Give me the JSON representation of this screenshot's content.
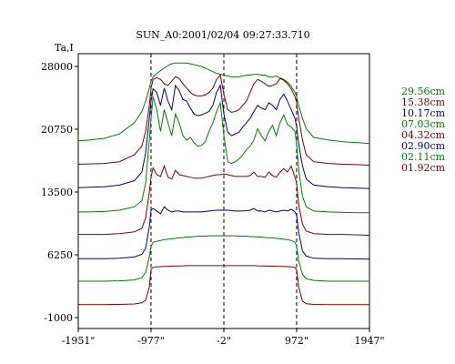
{
  "chart_data": {
    "type": "line",
    "title": "SUN_A0:2001/02/04 09:27:33.710",
    "ylabel": "Ta,I",
    "xlabel": "",
    "x_ticks": [
      "-1951\"",
      "-977\"",
      "-2\"",
      "972\"",
      "1947\""
    ],
    "x_tick_values": [
      -1951,
      -977,
      -2,
      972,
      1947
    ],
    "y_ticks": [
      "28000",
      "20750",
      "13500",
      "6250",
      "-1000"
    ],
    "y_tick_values": [
      28000,
      20750,
      13500,
      6250,
      -1000
    ],
    "xlim": [
      -1951,
      1947
    ],
    "ylim": [
      -1000,
      28000
    ],
    "dashed_vlines": [
      -977,
      -2,
      972
    ],
    "legend_position": "right",
    "grid": false,
    "x": [
      -1951,
      -1800,
      -1600,
      -1400,
      -1200,
      -1100,
      -1050,
      -1000,
      -977,
      -950,
      -900,
      -850,
      -800,
      -750,
      -700,
      -650,
      -600,
      -550,
      -500,
      -450,
      -400,
      -350,
      -300,
      -250,
      -200,
      -150,
      -100,
      -50,
      -2,
      50,
      100,
      150,
      200,
      250,
      300,
      350,
      400,
      450,
      500,
      550,
      600,
      650,
      700,
      750,
      800,
      850,
      900,
      950,
      972,
      1000,
      1050,
      1100,
      1200,
      1400,
      1600,
      1800,
      1947
    ],
    "series": [
      {
        "name": "29.56cm",
        "color": "#008000",
        "values": [
          19400,
          19500,
          19700,
          20200,
          21500,
          22800,
          24000,
          25500,
          26300,
          26800,
          27200,
          27500,
          27800,
          28100,
          28300,
          28400,
          28400,
          28400,
          28400,
          28300,
          28200,
          28100,
          28000,
          27800,
          27600,
          27400,
          27200,
          27100,
          27000,
          26900,
          26800,
          26800,
          26800,
          26900,
          27000,
          27000,
          27100,
          27100,
          27000,
          27000,
          26800,
          26800,
          26900,
          26700,
          26500,
          26200,
          25700,
          25000,
          24500,
          23500,
          22000,
          20800,
          19800,
          19500,
          19300,
          19200,
          19100
        ]
      },
      {
        "name": "15.38cm",
        "color": "#800000",
        "values": [
          16700,
          16750,
          16800,
          17000,
          17800,
          18800,
          20500,
          23500,
          25500,
          26500,
          26700,
          26500,
          26000,
          25800,
          26300,
          26800,
          26600,
          26000,
          25500,
          25000,
          24700,
          24600,
          24600,
          24700,
          25000,
          25500,
          26500,
          27000,
          24800,
          23000,
          22700,
          22800,
          23000,
          23500,
          24000,
          25000,
          26000,
          26500,
          26300,
          26000,
          25700,
          25800,
          26000,
          26600,
          26400,
          26000,
          25400,
          24500,
          23800,
          22000,
          19500,
          17800,
          17000,
          16800,
          16700,
          16650,
          16600
        ]
      },
      {
        "name": "10.17cm",
        "color": "#000080",
        "values": [
          14000,
          14050,
          14100,
          14300,
          14800,
          15800,
          18000,
          22000,
          24000,
          25400,
          25000,
          23500,
          25500,
          24000,
          23000,
          25800,
          25200,
          24200,
          24000,
          23200,
          22500,
          22300,
          22400,
          22600,
          22800,
          23500,
          25000,
          25800,
          22500,
          20400,
          20000,
          20200,
          20400,
          21000,
          21500,
          22000,
          22800,
          23500,
          23200,
          23000,
          23800,
          23500,
          23000,
          24200,
          24800,
          24000,
          23000,
          22000,
          21000,
          19000,
          16500,
          15000,
          14300,
          14100,
          14000,
          13950,
          13900
        ]
      },
      {
        "name": "07.03cm",
        "color": "#008000",
        "values": [
          11200,
          11200,
          11250,
          11400,
          11800,
          12500,
          14500,
          19500,
          22000,
          24500,
          23000,
          20500,
          23000,
          21500,
          20000,
          22500,
          21500,
          20000,
          19500,
          19800,
          19200,
          18800,
          18900,
          19300,
          20500,
          21500,
          22800,
          23800,
          20000,
          17000,
          16800,
          17000,
          17300,
          17800,
          18400,
          18800,
          19500,
          20800,
          20000,
          19400,
          20500,
          21200,
          20000,
          21500,
          22400,
          21300,
          21000,
          20500,
          19000,
          16000,
          13000,
          11800,
          11300,
          11200,
          11150,
          11100,
          11100
        ]
      },
      {
        "name": "04.32cm",
        "color": "#800000",
        "values": [
          8600,
          8600,
          8600,
          8700,
          8900,
          9300,
          10500,
          13500,
          15200,
          16300,
          15500,
          15300,
          16500,
          15200,
          15000,
          16000,
          15500,
          15400,
          15300,
          15200,
          15100,
          15100,
          15100,
          15200,
          15300,
          15400,
          15500,
          15500,
          15600,
          15500,
          15400,
          15300,
          15300,
          15300,
          15300,
          15400,
          15800,
          15300,
          15300,
          15200,
          15800,
          15400,
          15200,
          15800,
          16200,
          15800,
          16500,
          15200,
          14500,
          12000,
          9800,
          9000,
          8700,
          8600,
          8600,
          8550,
          8500
        ]
      },
      {
        "name": "02.90cm",
        "color": "#000080",
        "values": [
          5800,
          5800,
          5800,
          5850,
          6000,
          6300,
          7000,
          9500,
          11400,
          11600,
          11300,
          11000,
          11800,
          11400,
          11200,
          11300,
          11300,
          11200,
          11200,
          11200,
          11200,
          11200,
          11200,
          11250,
          11300,
          11350,
          11400,
          11400,
          11400,
          11400,
          11350,
          11300,
          11300,
          11300,
          11350,
          11400,
          11600,
          11300,
          11300,
          11200,
          11400,
          11300,
          11200,
          11300,
          11400,
          11300,
          11500,
          11200,
          10800,
          8800,
          6700,
          6100,
          5850,
          5800,
          5800,
          5780,
          5750
        ]
      },
      {
        "name": "02.11cm",
        "color": "#008000",
        "values": [
          3200,
          3200,
          3200,
          3250,
          3350,
          3600,
          4200,
          6000,
          7200,
          7700,
          7800,
          7900,
          8000,
          8050,
          8100,
          8150,
          8200,
          8250,
          8300,
          8300,
          8350,
          8400,
          8400,
          8400,
          8450,
          8450,
          8450,
          8450,
          8450,
          8450,
          8450,
          8450,
          8400,
          8400,
          8400,
          8350,
          8350,
          8300,
          8300,
          8250,
          8200,
          8200,
          8150,
          8100,
          8050,
          8000,
          7900,
          7700,
          7200,
          5500,
          4000,
          3500,
          3300,
          3200,
          3200,
          3200,
          3200
        ]
      },
      {
        "name": "01.92cm",
        "color": "#800000",
        "values": [
          500,
          500,
          500,
          520,
          580,
          700,
          1000,
          2500,
          4600,
          4800,
          4850,
          4880,
          4900,
          4920,
          4950,
          4950,
          4970,
          4980,
          5000,
          5000,
          5000,
          5000,
          5000,
          5000,
          5000,
          5000,
          5000,
          5000,
          5000,
          5000,
          5000,
          5000,
          5000,
          5000,
          5000,
          5000,
          5000,
          4980,
          4970,
          4960,
          4950,
          4940,
          4930,
          4920,
          4900,
          4880,
          4850,
          4800,
          4500,
          2500,
          900,
          600,
          520,
          500,
          500,
          500,
          500
        ]
      }
    ]
  }
}
